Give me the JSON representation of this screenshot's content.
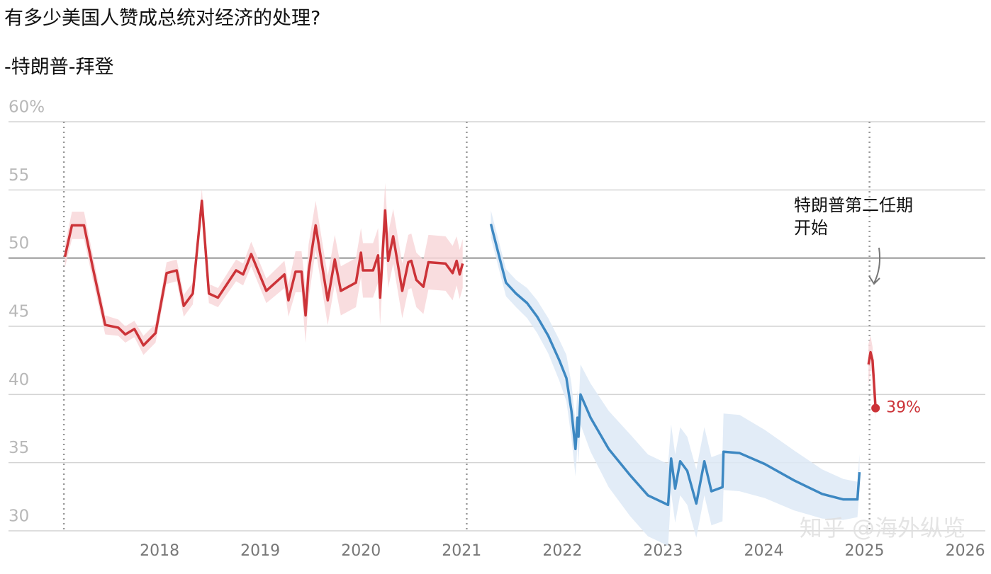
{
  "chart_data": {
    "type": "line",
    "title": "有多少美国人赞成总统对经济的处理?",
    "subtitle": "-特朗普-拜登",
    "annotation": [
      "特朗普第二任期",
      "开始"
    ],
    "watermark": "知乎 @海外纵览",
    "xlim": [
      2016.5,
      2026.2
    ],
    "xticks": [
      2018,
      2019,
      2020,
      2021,
      2022,
      2023,
      2024,
      2025,
      2026
    ],
    "ylim": [
      30,
      60
    ],
    "yticks": [
      30,
      35,
      40,
      45,
      50,
      55,
      {
        "value": 60,
        "label": "60%"
      }
    ],
    "reference_lines": [
      2017.05,
      2021.05,
      2025.05
    ],
    "grid": true,
    "series": [
      {
        "color": "#cc3338",
        "band_color": "#f8d7d9",
        "x": [
          2017.06,
          2017.13,
          2017.25,
          2017.34,
          2017.46,
          2017.59,
          2017.66,
          2017.75,
          2017.84,
          2017.96,
          2018.07,
          2018.17,
          2018.24,
          2018.33,
          2018.42,
          2018.49,
          2018.58,
          2018.76,
          2018.83,
          2018.91,
          2019.06,
          2019.24,
          2019.28,
          2019.35,
          2019.41,
          2019.45,
          2019.48,
          2019.55,
          2019.67,
          2019.74,
          2019.8,
          2019.95,
          2020.0,
          2020.02,
          2020.12,
          2020.17,
          2020.19,
          2020.24,
          2020.27,
          2020.32,
          2020.41,
          2020.47,
          2020.5,
          2020.55,
          2020.62,
          2020.67,
          2020.84,
          2020.91,
          2020.95,
          2020.98,
          2021.01
        ],
        "values": [
          50.1,
          52.4,
          52.4,
          49.2,
          45.1,
          44.9,
          44.4,
          44.8,
          43.6,
          44.5,
          48.9,
          49.1,
          46.5,
          47.4,
          54.2,
          47.4,
          47.1,
          49.1,
          48.8,
          50.3,
          47.6,
          48.8,
          46.9,
          49.0,
          49.0,
          45.8,
          49.0,
          52.4,
          46.9,
          49.9,
          47.6,
          48.2,
          50.4,
          49.1,
          49.1,
          50.2,
          47.1,
          53.5,
          49.8,
          51.6,
          47.6,
          49.7,
          49.8,
          48.4,
          47.9,
          49.7,
          49.6,
          48.9,
          49.8,
          48.8,
          49.6
        ],
        "band": [
          0.8,
          1.0,
          1.0,
          0.9,
          0.7,
          0.6,
          0.6,
          0.6,
          0.7,
          0.7,
          0.8,
          0.8,
          0.8,
          0.8,
          0.9,
          0.7,
          0.7,
          0.8,
          0.8,
          0.9,
          0.9,
          1.0,
          1.2,
          1.5,
          1.5,
          2.0,
          2.0,
          1.8,
          1.8,
          1.8,
          1.8,
          1.8,
          1.8,
          2,
          2,
          2,
          2,
          2,
          2,
          2,
          2,
          2,
          2,
          2,
          2,
          2,
          2,
          2,
          1.8,
          1.8,
          1.8
        ]
      },
      {
        "color": "#3d88c2",
        "band_color": "#dde9f6",
        "x": [
          2021.29,
          2021.37,
          2021.44,
          2021.54,
          2021.65,
          2021.75,
          2021.86,
          2021.97,
          2022.04,
          2022.09,
          2022.13,
          2022.15,
          2022.16,
          2022.18,
          2022.28,
          2022.46,
          2022.67,
          2022.85,
          2023.05,
          2023.08,
          2023.12,
          2023.17,
          2023.24,
          2023.33,
          2023.41,
          2023.48,
          2023.59,
          2023.6,
          2023.76,
          2024.01,
          2024.3,
          2024.58,
          2024.79,
          2024.93,
          2024.95
        ],
        "values": [
          52.5,
          50.2,
          48.2,
          47.4,
          46.7,
          45.7,
          44.3,
          42.5,
          41.2,
          38.8,
          36.0,
          38.3,
          36.9,
          40.0,
          38.3,
          36.0,
          34.1,
          32.6,
          31.9,
          35.3,
          33.1,
          35.1,
          34.4,
          32.0,
          35.1,
          32.9,
          33.2,
          35.8,
          35.7,
          34.9,
          33.7,
          32.7,
          32.3,
          32.3,
          34.3
        ],
        "band": [
          1.0,
          1.0,
          1.0,
          1.0,
          1.1,
          1.2,
          1.3,
          1.5,
          1.7,
          2.0,
          2.0,
          2.0,
          2.0,
          2.2,
          2.5,
          2.8,
          3.0,
          3.0,
          3.0,
          2.5,
          2.5,
          2.5,
          2.5,
          2.5,
          2.5,
          2.5,
          2.5,
          2.8,
          2.8,
          2.5,
          2.2,
          1.8,
          1.5,
          1.3,
          1.3
        ]
      },
      {
        "color": "#cc3338",
        "band_color": "#f8d7d9",
        "x": [
          2025.04,
          2025.06,
          2025.08,
          2025.11
        ],
        "values": [
          42.2,
          43.1,
          42.5,
          39
        ],
        "value_labels": [
          null,
          null,
          null,
          "39%"
        ],
        "band": [
          1.5,
          1.2,
          1.0,
          0.8
        ]
      }
    ]
  }
}
